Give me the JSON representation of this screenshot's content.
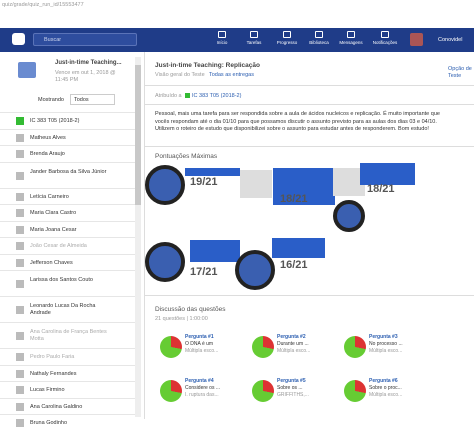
{
  "url": "quiz/grade/quiz_run_id/15553477",
  "navbar": {
    "search": "Buscar",
    "items": [
      "Início",
      "Tarefas",
      "Progresso",
      "Biblioteca",
      "Mensagens",
      "Notificações"
    ],
    "user": "Conovidel"
  },
  "sidebar": {
    "title": "Just-in-time Teaching...",
    "due": "Vence em out 1, 2018 @ 11:45 PM",
    "filter_label": "Mostrando",
    "filter_value": "Todos",
    "students": [
      "IC 383 T05 (2018-2)",
      "Matheus Alves",
      "Brenda Araujo",
      "Jander Barbosa da Silva Júnior",
      "Letícia Carneiro",
      "Maria Clara Castro",
      "Maria Joana Cesar",
      "João Cesar de Almeida",
      "Jefferson Chaves",
      "Larissa dos Santos Couto",
      "Leonardo Lucas Da Rocha Andrade",
      "Ana Carolina de França Bentes Motta",
      "Pedro Paulo Faria",
      "Nathaly Fernandes",
      "Lucas Firmino",
      "Ana Carolina Galdino",
      "Bruna Godinho"
    ]
  },
  "main": {
    "title": "Just-in-time Teaching: Replicação",
    "tabs": [
      "Visão geral do Teste",
      "Todas as entregas"
    ],
    "options": "Opção de Teste",
    "assigned_label": "Atribuído a",
    "assigned_group": "IC 383 T05 (2018-2)",
    "description": "Pessoal, mais uma tarefa para ser respondida sobre a aula de ácidos nucleicos e replicação. É muito importante que vocês respondam até o dia 01/10 para que possamos discutir o assunto previsto para as aulas dos dias 03 e 04/10. Utilizem o roteiro de estudo que disponibilizei sobre o assunto para estudar antes de responderem. Bom estudo!",
    "top_scores_title": "Pontuações Máximas",
    "top_scores": [
      "19/21",
      "18/21",
      "18/21",
      "17/21",
      "16/21"
    ],
    "questions_title": "Discussão das questões",
    "questions_meta": "21 questões | 1:00:00",
    "questions": [
      {
        "label": "Pergunta #1",
        "text": "O DNA é um",
        "kind": "Múltipla esco..."
      },
      {
        "label": "Pergunta #2",
        "text": "Durante um ...",
        "kind": "Múltipla esco..."
      },
      {
        "label": "Pergunta #3",
        "text": "No processo ...",
        "kind": "Múltipla esco..."
      },
      {
        "label": "Pergunta #4",
        "text": "Considere os ...",
        "kind": "I. ruptura das..."
      },
      {
        "label": "Pergunta #5",
        "text": "Sobre os ...",
        "kind": "GRIFFITHS,..."
      },
      {
        "label": "Pergunta #6",
        "text": "Sobre o proc...",
        "kind": "Múltipla esco..."
      }
    ]
  }
}
